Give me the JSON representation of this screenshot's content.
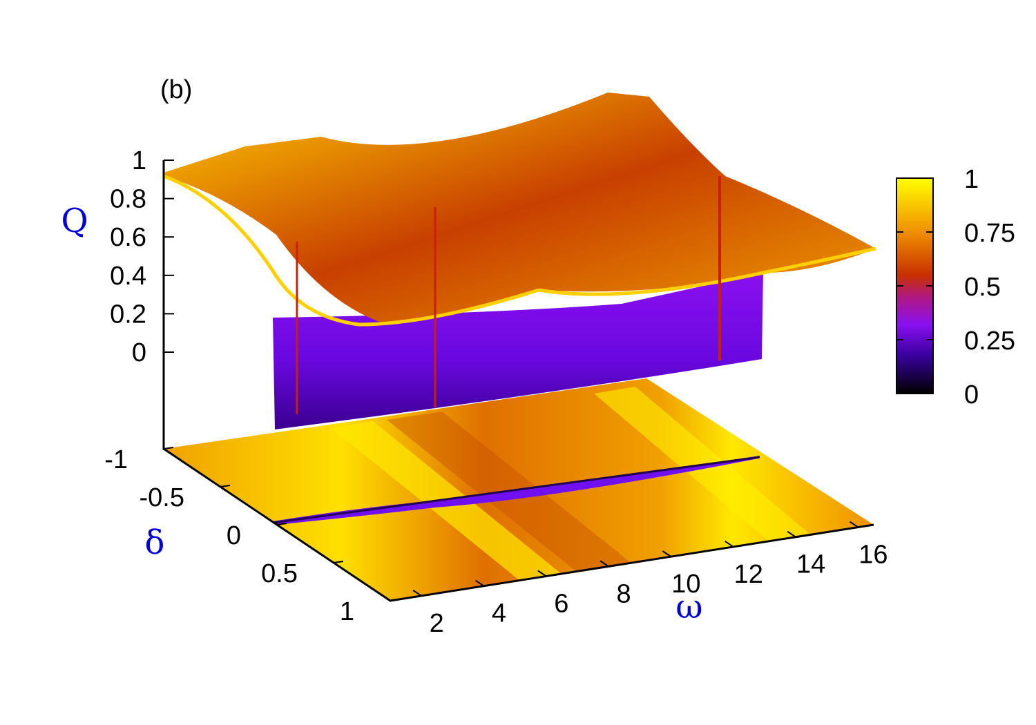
{
  "panel_label": "(b)",
  "chart_data": {
    "type": "surface3d",
    "title": "",
    "xlabel": "ω",
    "ylabel": "δ",
    "zlabel": "Q",
    "xlim": [
      1,
      16.5
    ],
    "ylim": [
      -1,
      1
    ],
    "zlim": [
      0,
      1
    ],
    "x_ticks": [
      "2",
      "4",
      "6",
      "8",
      "10",
      "12",
      "14",
      "16"
    ],
    "y_ticks": [
      "-1",
      "-0.5",
      "0",
      "0.5",
      "1"
    ],
    "z_ticks": [
      "0",
      "0.2",
      "0.4",
      "0.6",
      "0.8",
      "1"
    ],
    "colorbar": {
      "range": [
        0,
        1
      ],
      "ticks": [
        "0",
        "0.25",
        "0.5",
        "0.75",
        "1"
      ],
      "palette": [
        "#000000",
        "#5a00c8",
        "#9e1ff0",
        "#c8200c",
        "#f08000",
        "#ffff00"
      ]
    },
    "projection": "2D color map of Q(ω, δ) on the base plane",
    "features": {
      "minimum_line": "Q ≈ 0 along a narrow band near δ ≈ 0 across all ω",
      "crossing_points_omega": [
        4.8,
        12.2
      ],
      "max_Q": 1
    }
  }
}
